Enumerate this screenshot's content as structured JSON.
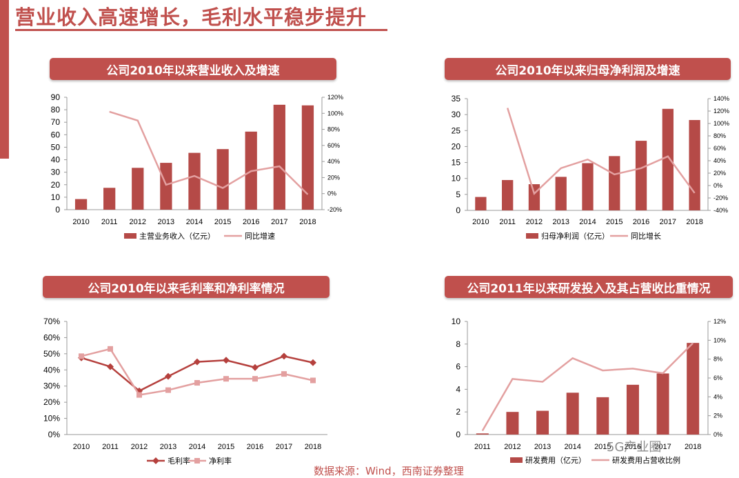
{
  "header": {
    "title": "营业收入高速增长，毛利水平稳步提升"
  },
  "source_note": "数据来源：Wind，西南证券整理",
  "watermark": "5G产业圈",
  "colors": {
    "bar": "#b54a47",
    "line": "#e3a0a0",
    "accent": "#c0504d",
    "line_dark": "#b5403d"
  },
  "chart_data": [
    {
      "id": "revenue",
      "type": "bar+line",
      "title": "公司2010年以来营业收入及增速",
      "categories": [
        "2010",
        "2011",
        "2012",
        "2013",
        "2014",
        "2015",
        "2016",
        "2017",
        "2018"
      ],
      "series": [
        {
          "name": "主营业务收入（亿元）",
          "kind": "bar",
          "axis": "left",
          "values": [
            8.5,
            17.5,
            33.5,
            37.5,
            45.5,
            48.5,
            62.5,
            84,
            83.5
          ]
        },
        {
          "name": "同比增速",
          "kind": "line",
          "axis": "right",
          "values": [
            null,
            102,
            91,
            11,
            22,
            7,
            28,
            34,
            -1
          ]
        }
      ],
      "yleft": {
        "ticks": [
          "0",
          "10",
          "20",
          "30",
          "40",
          "50",
          "60",
          "70",
          "80",
          "90"
        ],
        "min": 0,
        "max": 90
      },
      "yright": {
        "ticks": [
          "-20%",
          "0%",
          "20%",
          "40%",
          "60%",
          "80%",
          "100%",
          "120%"
        ],
        "min": -20,
        "max": 120
      }
    },
    {
      "id": "netprofit",
      "type": "bar+line",
      "title": "公司2010年以来归母净利润及增速",
      "categories": [
        "2010",
        "2011",
        "2012",
        "2013",
        "2014",
        "2015",
        "2016",
        "2017",
        "2018"
      ],
      "series": [
        {
          "name": "归母净利润（亿元）",
          "kind": "bar",
          "axis": "left",
          "values": [
            4.2,
            9.5,
            8.2,
            10.5,
            14.8,
            17,
            21.8,
            31.8,
            28.3
          ]
        },
        {
          "name": "同比增长",
          "kind": "line",
          "axis": "right",
          "values": [
            null,
            125,
            -13,
            28,
            42,
            18,
            28,
            47,
            -12
          ]
        }
      ],
      "yleft": {
        "ticks": [
          "0",
          "5",
          "10",
          "15",
          "20",
          "25",
          "30",
          "35"
        ],
        "min": 0,
        "max": 35
      },
      "yright": {
        "ticks": [
          "-40%",
          "-20%",
          "0%",
          "20%",
          "40%",
          "60%",
          "80%",
          "100%",
          "120%",
          "140%"
        ],
        "min": -40,
        "max": 140
      }
    },
    {
      "id": "margins",
      "type": "line",
      "title": "公司2010年以来毛利率和净利率情况",
      "categories": [
        "2010",
        "2011",
        "2012",
        "2013",
        "2014",
        "2015",
        "2016",
        "2017",
        "2018"
      ],
      "series": [
        {
          "name": "毛利率",
          "marker": "diamond",
          "values": [
            47.5,
            42,
            27,
            36,
            45,
            46,
            41.5,
            48.5,
            44.5
          ]
        },
        {
          "name": "净利率",
          "marker": "square",
          "values": [
            48.5,
            53,
            24.5,
            27.5,
            32,
            34.5,
            34.5,
            37.5,
            33.5
          ]
        }
      ],
      "yleft": {
        "ticks": [
          "0%",
          "10%",
          "20%",
          "30%",
          "40%",
          "50%",
          "60%",
          "70%"
        ],
        "min": 0,
        "max": 70
      }
    },
    {
      "id": "rnd",
      "type": "bar+line",
      "title": "公司2011年以来研发投入及其占营收比重情况",
      "categories": [
        "2011",
        "2012",
        "2013",
        "2014",
        "2015",
        "2016",
        "2017",
        "2018"
      ],
      "series": [
        {
          "name": "研发费用（亿元）",
          "kind": "bar",
          "axis": "left",
          "values": [
            0.1,
            2,
            2.1,
            3.7,
            3.3,
            4.4,
            5.4,
            8.1
          ]
        },
        {
          "name": "研发费用占营收比例",
          "kind": "line",
          "axis": "right",
          "values": [
            0.4,
            5.9,
            5.6,
            8.1,
            6.8,
            7,
            6.5,
            9.7
          ]
        }
      ],
      "yleft": {
        "ticks": [
          "0",
          "2",
          "4",
          "6",
          "8",
          "10"
        ],
        "min": 0,
        "max": 10
      },
      "yright": {
        "ticks": [
          "0%",
          "2%",
          "4%",
          "6%",
          "8%",
          "10%",
          "12%"
        ],
        "min": 0,
        "max": 12
      }
    }
  ]
}
